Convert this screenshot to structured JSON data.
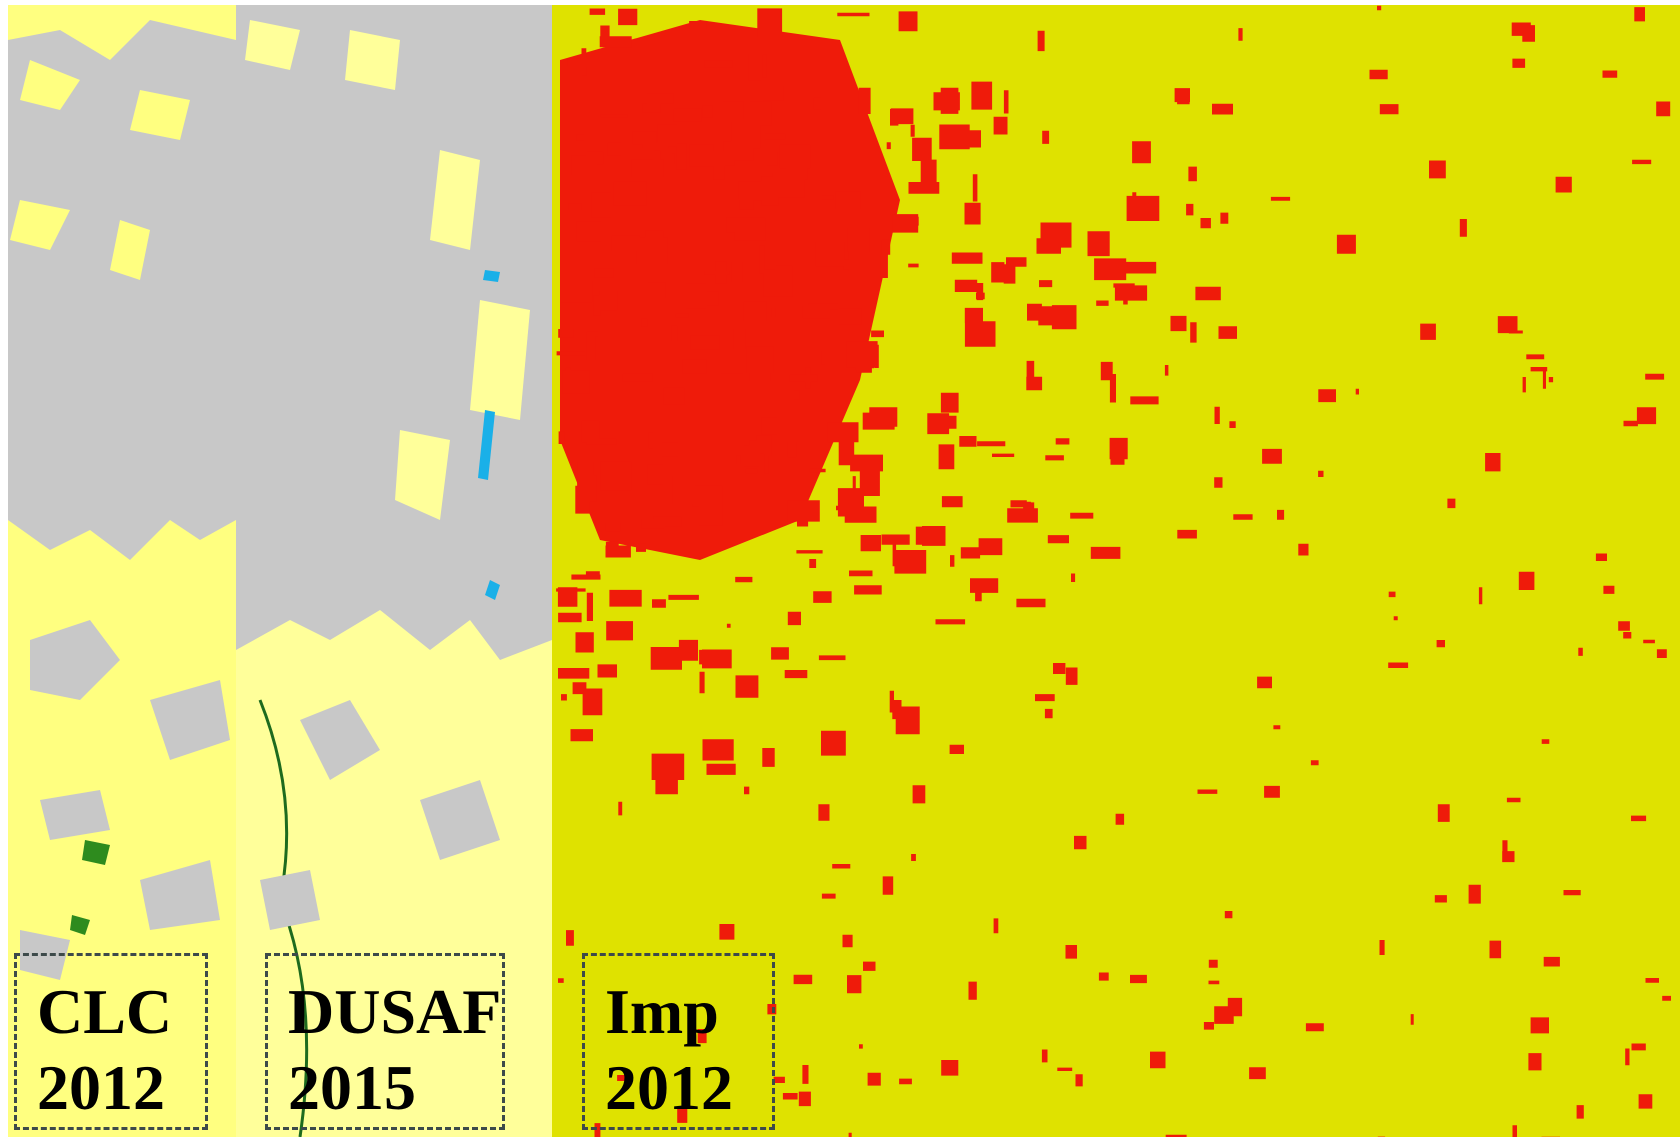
{
  "panels": [
    {
      "label": [
        "CLC",
        "2012"
      ]
    },
    {
      "label": [
        "DUSAF",
        "2015"
      ]
    },
    {
      "label": [
        "Imp",
        "2012"
      ]
    }
  ]
}
